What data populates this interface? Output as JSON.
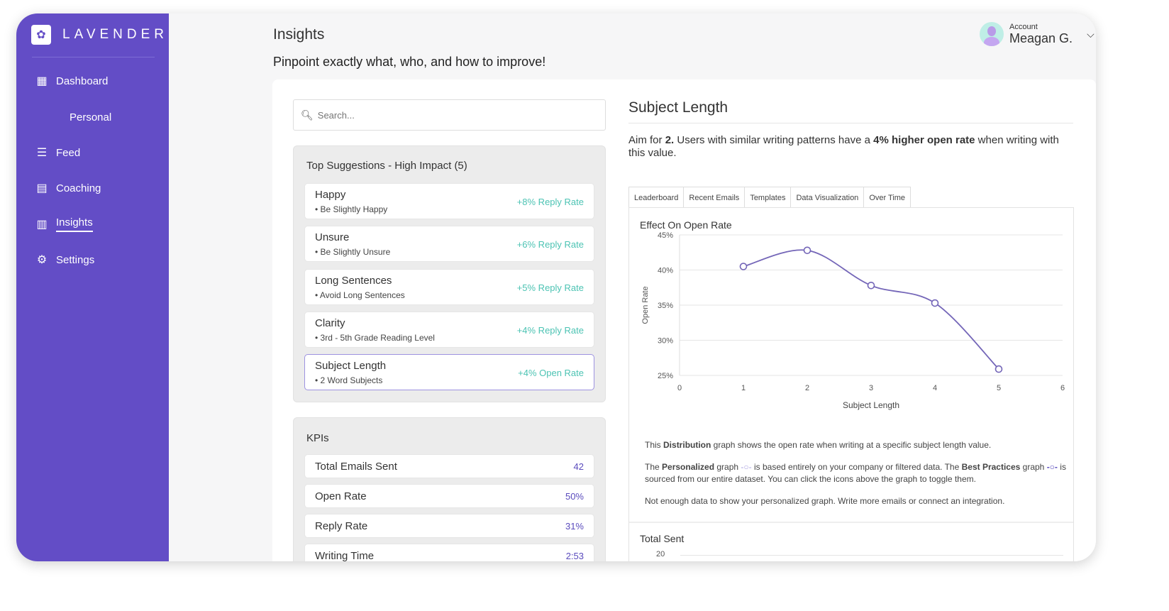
{
  "brand": {
    "name": "LAVENDER",
    "logo_icon": "lavender-flower-icon"
  },
  "sidebar": {
    "items": [
      {
        "label": "Dashboard",
        "icon": "dashboard-icon"
      },
      {
        "label": "Personal"
      },
      {
        "label": "Feed",
        "icon": "feed-icon"
      },
      {
        "label": "Coaching",
        "icon": "coaching-icon"
      },
      {
        "label": "Insights",
        "icon": "insights-icon",
        "active": true
      },
      {
        "label": "Settings",
        "icon": "settings-icon"
      }
    ]
  },
  "header": {
    "title": "Insights",
    "tagline": "Pinpoint exactly what, who, and how to improve!",
    "account_label": "Account",
    "account_name": "Meagan G."
  },
  "search": {
    "placeholder": "Search..."
  },
  "suggestions": {
    "title": "Top Suggestions - High Impact (5)",
    "items": [
      {
        "title": "Happy",
        "sub": "• Be Slightly Happy",
        "impact": "+8% Reply Rate"
      },
      {
        "title": "Unsure",
        "sub": "• Be Slightly Unsure",
        "impact": "+6% Reply Rate"
      },
      {
        "title": "Long Sentences",
        "sub": "• Avoid Long Sentences",
        "impact": "+5% Reply Rate"
      },
      {
        "title": "Clarity",
        "sub": "• 3rd - 5th Grade Reading Level",
        "impact": "+4% Reply Rate"
      },
      {
        "title": "Subject Length",
        "sub": "• 2 Word Subjects",
        "impact": "+4% Open Rate",
        "selected": true
      }
    ]
  },
  "kpis": {
    "title": "KPIs",
    "items": [
      {
        "label": "Total Emails Sent",
        "value": "42"
      },
      {
        "label": "Open Rate",
        "value": "50%"
      },
      {
        "label": "Reply Rate",
        "value": "31%"
      },
      {
        "label": "Writing Time",
        "value": "2:53"
      }
    ]
  },
  "detail": {
    "title": "Subject Length",
    "aim_pre": "Aim for ",
    "aim_value": "2.",
    "aim_mid": " Users with similar writing patterns have a ",
    "aim_bold": "4% higher open rate",
    "aim_post": " when writing with this value.",
    "tabs": [
      "Leaderboard",
      "Recent Emails",
      "Templates",
      "Data Visualization",
      "Over Time"
    ],
    "active_tab": "Data Visualization",
    "desc1_pre": "This ",
    "desc1_bold": "Distribution",
    "desc1_post": " graph shows the open rate when writing at a specific subject length value.",
    "desc2_a": "The ",
    "desc2_b": "Personalized",
    "desc2_c": " graph ",
    "desc2_d": " is based entirely on your company or filtered data. The ",
    "desc2_e": "Best Practices",
    "desc2_f": " graph ",
    "desc2_g": " is sourced from our entire dataset. You can click the icons above the graph to toggle them.",
    "desc3": "Not enough data to show your personalized graph. Write more emails or connect an integration.",
    "second_chart_title": "Total Sent",
    "second_chart_tick": "20"
  },
  "colors": {
    "sidebar": "#634dc6",
    "impact": "#4cc3b3",
    "kpi_value": "#5a4bbd",
    "line": "#7466b8"
  },
  "chart_data": {
    "type": "line",
    "title": "Effect On Open Rate",
    "xlabel": "Subject Length",
    "ylabel": "Open Rate",
    "x": [
      1,
      2,
      3,
      4,
      5
    ],
    "y": [
      40.5,
      42.8,
      37.8,
      35.3,
      25.9
    ],
    "xlim": [
      0,
      6
    ],
    "ylim": [
      25,
      45
    ],
    "xticks": [
      "0",
      "1",
      "2",
      "3",
      "4",
      "5",
      "6"
    ],
    "yticks": [
      "25%",
      "30%",
      "35%",
      "40%",
      "45%"
    ],
    "grid": true,
    "curve": "smooth"
  }
}
